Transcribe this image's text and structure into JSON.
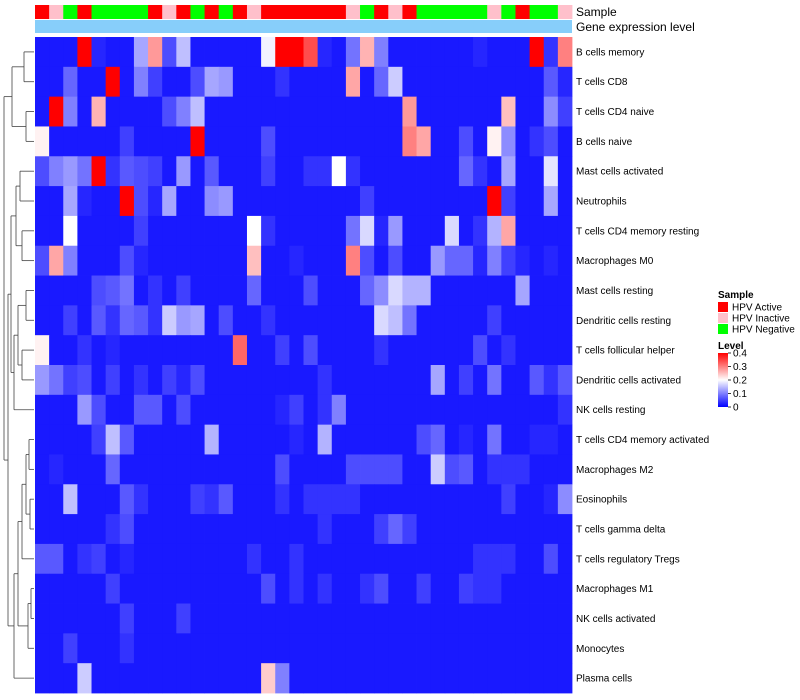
{
  "chart_data": {
    "type": "heatmap",
    "annotation_labels": [
      "Sample",
      "Gene expression level"
    ],
    "rows": [
      "B cells memory",
      "T cells CD8",
      "T cells CD4 naive",
      "B cells naive",
      "Mast cells activated",
      "Neutrophils",
      "T cells CD4 memory resting",
      "Macrophages M0",
      "Mast cells resting",
      "Dendritic cells resting",
      "T cells follicular helper",
      "Dendritic cells activated",
      "NK cells resting",
      "T cells CD4 memory activated",
      "Macrophages M2",
      "Eosinophils",
      "T cells gamma delta",
      "T cells regulatory  Tregs",
      "Macrophages M1",
      "NK cells activated",
      "Monocytes",
      "Plasma cells"
    ],
    "sample_groups": [
      "A",
      "I",
      "N",
      "A",
      "N",
      "N",
      "N",
      "N",
      "A",
      "I",
      "A",
      "N",
      "A",
      "N",
      "A",
      "I",
      "A",
      "A",
      "A",
      "A",
      "A",
      "A",
      "I",
      "N",
      "A",
      "I",
      "A",
      "N",
      "N",
      "N",
      "N",
      "N",
      "I",
      "N",
      "A",
      "N",
      "N",
      "I"
    ],
    "values": [
      [
        0.02,
        0.02,
        0.02,
        0.4,
        0.03,
        0.02,
        0.02,
        0.13,
        0.28,
        0.06,
        0.15,
        0.02,
        0.02,
        0.02,
        0.02,
        0.02,
        0.19,
        0.4,
        0.4,
        0.34,
        0.03,
        0.02,
        0.09,
        0.26,
        0.1,
        0.02,
        0.02,
        0.02,
        0.02,
        0.02,
        0.02,
        0.03,
        0.02,
        0.02,
        0.02,
        0.4,
        0.04,
        0.3
      ],
      [
        0.02,
        0.02,
        0.08,
        0.02,
        0.02,
        0.4,
        0.02,
        0.1,
        0.05,
        0.02,
        0.02,
        0.06,
        0.13,
        0.12,
        0.02,
        0.02,
        0.02,
        0.04,
        0.02,
        0.02,
        0.02,
        0.02,
        0.27,
        0.02,
        0.08,
        0.16,
        0.02,
        0.02,
        0.02,
        0.02,
        0.02,
        0.02,
        0.02,
        0.02,
        0.02,
        0.02,
        0.07,
        0.03
      ],
      [
        0.02,
        0.4,
        0.1,
        0.02,
        0.26,
        0.02,
        0.02,
        0.02,
        0.02,
        0.06,
        0.1,
        0.15,
        0.02,
        0.02,
        0.02,
        0.02,
        0.02,
        0.02,
        0.02,
        0.02,
        0.02,
        0.02,
        0.02,
        0.02,
        0.02,
        0.02,
        0.28,
        0.02,
        0.02,
        0.02,
        0.02,
        0.02,
        0.02,
        0.25,
        0.02,
        0.02,
        0.11,
        0.05
      ],
      [
        0.21,
        0.02,
        0.02,
        0.02,
        0.02,
        0.02,
        0.05,
        0.02,
        0.02,
        0.02,
        0.02,
        0.4,
        0.02,
        0.02,
        0.02,
        0.02,
        0.06,
        0.02,
        0.02,
        0.02,
        0.02,
        0.02,
        0.02,
        0.02,
        0.02,
        0.02,
        0.3,
        0.27,
        0.02,
        0.02,
        0.06,
        0.02,
        0.21,
        0.11,
        0.02,
        0.04,
        0.06,
        0.02
      ],
      [
        0.06,
        0.1,
        0.12,
        0.09,
        0.4,
        0.04,
        0.07,
        0.06,
        0.05,
        0.02,
        0.12,
        0.02,
        0.07,
        0.02,
        0.02,
        0.02,
        0.05,
        0.02,
        0.02,
        0.04,
        0.04,
        0.2,
        0.04,
        0.02,
        0.02,
        0.02,
        0.02,
        0.02,
        0.02,
        0.02,
        0.08,
        0.04,
        0.02,
        0.13,
        0.02,
        0.02,
        0.18,
        0.02
      ],
      [
        0.02,
        0.02,
        0.13,
        0.03,
        0.02,
        0.02,
        0.4,
        0.06,
        0.03,
        0.13,
        0.02,
        0.02,
        0.11,
        0.12,
        0.02,
        0.02,
        0.02,
        0.02,
        0.02,
        0.02,
        0.02,
        0.02,
        0.02,
        0.05,
        0.02,
        0.02,
        0.02,
        0.02,
        0.02,
        0.02,
        0.02,
        0.02,
        0.4,
        0.05,
        0.02,
        0.02,
        0.13,
        0.02
      ],
      [
        0.02,
        0.02,
        0.2,
        0.02,
        0.02,
        0.02,
        0.02,
        0.05,
        0.02,
        0.02,
        0.02,
        0.02,
        0.02,
        0.02,
        0.02,
        0.2,
        0.04,
        0.02,
        0.02,
        0.02,
        0.02,
        0.02,
        0.09,
        0.17,
        0.03,
        0.12,
        0.02,
        0.02,
        0.02,
        0.17,
        0.02,
        0.04,
        0.14,
        0.27,
        0.02,
        0.02,
        0.02,
        0.02
      ],
      [
        0.06,
        0.27,
        0.1,
        0.02,
        0.02,
        0.02,
        0.06,
        0.03,
        0.02,
        0.02,
        0.02,
        0.02,
        0.02,
        0.02,
        0.02,
        0.25,
        0.02,
        0.02,
        0.03,
        0.02,
        0.02,
        0.02,
        0.3,
        0.06,
        0.02,
        0.06,
        0.02,
        0.02,
        0.12,
        0.08,
        0.08,
        0.03,
        0.1,
        0.05,
        0.03,
        0.02,
        0.03,
        0.02
      ],
      [
        0.02,
        0.02,
        0.02,
        0.02,
        0.06,
        0.07,
        0.09,
        0.02,
        0.04,
        0.02,
        0.05,
        0.02,
        0.02,
        0.02,
        0.02,
        0.08,
        0.02,
        0.02,
        0.02,
        0.06,
        0.02,
        0.02,
        0.02,
        0.08,
        0.11,
        0.17,
        0.14,
        0.14,
        0.02,
        0.02,
        0.02,
        0.02,
        0.02,
        0.02,
        0.13,
        0.02,
        0.02,
        0.02
      ],
      [
        0.02,
        0.02,
        0.05,
        0.02,
        0.07,
        0.04,
        0.08,
        0.07,
        0.04,
        0.16,
        0.12,
        0.13,
        0.02,
        0.06,
        0.02,
        0.02,
        0.04,
        0.02,
        0.02,
        0.02,
        0.02,
        0.02,
        0.02,
        0.02,
        0.17,
        0.15,
        0.09,
        0.02,
        0.02,
        0.02,
        0.02,
        0.02,
        0.05,
        0.02,
        0.02,
        0.02,
        0.02,
        0.02
      ],
      [
        0.21,
        0.02,
        0.02,
        0.04,
        0.02,
        0.03,
        0.02,
        0.02,
        0.02,
        0.02,
        0.02,
        0.02,
        0.02,
        0.02,
        0.32,
        0.02,
        0.02,
        0.05,
        0.02,
        0.06,
        0.02,
        0.02,
        0.02,
        0.02,
        0.04,
        0.02,
        0.02,
        0.02,
        0.02,
        0.02,
        0.02,
        0.06,
        0.02,
        0.04,
        0.02,
        0.02,
        0.02,
        0.02
      ],
      [
        0.12,
        0.09,
        0.05,
        0.06,
        0.02,
        0.05,
        0.02,
        0.04,
        0.02,
        0.05,
        0.03,
        0.06,
        0.02,
        0.02,
        0.02,
        0.02,
        0.02,
        0.02,
        0.02,
        0.02,
        0.04,
        0.02,
        0.02,
        0.02,
        0.02,
        0.02,
        0.02,
        0.02,
        0.13,
        0.02,
        0.05,
        0.02,
        0.09,
        0.02,
        0.02,
        0.07,
        0.04,
        0.07
      ],
      [
        0.02,
        0.02,
        0.02,
        0.12,
        0.06,
        0.02,
        0.02,
        0.07,
        0.07,
        0.02,
        0.06,
        0.02,
        0.02,
        0.02,
        0.02,
        0.02,
        0.02,
        0.03,
        0.05,
        0.02,
        0.04,
        0.1,
        0.02,
        0.02,
        0.02,
        0.02,
        0.02,
        0.02,
        0.02,
        0.02,
        0.02,
        0.02,
        0.02,
        0.02,
        0.02,
        0.02,
        0.02,
        0.04
      ],
      [
        0.02,
        0.02,
        0.02,
        0.02,
        0.05,
        0.15,
        0.07,
        0.02,
        0.02,
        0.02,
        0.02,
        0.02,
        0.14,
        0.02,
        0.02,
        0.02,
        0.02,
        0.02,
        0.03,
        0.02,
        0.14,
        0.02,
        0.02,
        0.02,
        0.02,
        0.02,
        0.02,
        0.06,
        0.08,
        0.02,
        0.03,
        0.02,
        0.09,
        0.02,
        0.02,
        0.03,
        0.03,
        0.02
      ],
      [
        0.02,
        0.03,
        0.02,
        0.02,
        0.02,
        0.08,
        0.02,
        0.02,
        0.02,
        0.02,
        0.02,
        0.02,
        0.02,
        0.02,
        0.02,
        0.02,
        0.02,
        0.06,
        0.02,
        0.02,
        0.02,
        0.02,
        0.06,
        0.06,
        0.06,
        0.06,
        0.02,
        0.02,
        0.16,
        0.06,
        0.07,
        0.02,
        0.04,
        0.04,
        0.04,
        0.02,
        0.02,
        0.02
      ],
      [
        0.02,
        0.02,
        0.15,
        0.02,
        0.02,
        0.02,
        0.07,
        0.04,
        0.02,
        0.02,
        0.02,
        0.05,
        0.04,
        0.07,
        0.02,
        0.02,
        0.02,
        0.04,
        0.02,
        0.04,
        0.04,
        0.04,
        0.04,
        0.02,
        0.02,
        0.02,
        0.02,
        0.02,
        0.02,
        0.02,
        0.02,
        0.02,
        0.02,
        0.05,
        0.02,
        0.02,
        0.03,
        0.11
      ],
      [
        0.02,
        0.02,
        0.02,
        0.02,
        0.02,
        0.04,
        0.06,
        0.02,
        0.02,
        0.02,
        0.02,
        0.02,
        0.02,
        0.02,
        0.02,
        0.02,
        0.02,
        0.02,
        0.02,
        0.02,
        0.04,
        0.02,
        0.02,
        0.02,
        0.05,
        0.08,
        0.05,
        0.02,
        0.02,
        0.02,
        0.02,
        0.02,
        0.02,
        0.02,
        0.02,
        0.02,
        0.02,
        0.02
      ],
      [
        0.07,
        0.07,
        0.02,
        0.04,
        0.05,
        0.02,
        0.03,
        0.02,
        0.02,
        0.02,
        0.02,
        0.02,
        0.02,
        0.02,
        0.02,
        0.04,
        0.02,
        0.02,
        0.04,
        0.02,
        0.02,
        0.02,
        0.02,
        0.02,
        0.02,
        0.02,
        0.02,
        0.02,
        0.02,
        0.02,
        0.02,
        0.04,
        0.04,
        0.04,
        0.02,
        0.02,
        0.06,
        0.02
      ],
      [
        0.02,
        0.02,
        0.02,
        0.02,
        0.02,
        0.05,
        0.02,
        0.02,
        0.02,
        0.02,
        0.02,
        0.02,
        0.02,
        0.02,
        0.02,
        0.02,
        0.06,
        0.02,
        0.04,
        0.02,
        0.04,
        0.02,
        0.02,
        0.04,
        0.06,
        0.02,
        0.02,
        0.05,
        0.02,
        0.02,
        0.05,
        0.04,
        0.04,
        0.02,
        0.02,
        0.02,
        0.02,
        0.02
      ],
      [
        0.02,
        0.02,
        0.02,
        0.02,
        0.02,
        0.02,
        0.05,
        0.02,
        0.02,
        0.02,
        0.05,
        0.02,
        0.02,
        0.02,
        0.02,
        0.02,
        0.02,
        0.02,
        0.02,
        0.02,
        0.02,
        0.02,
        0.02,
        0.02,
        0.02,
        0.02,
        0.02,
        0.02,
        0.02,
        0.02,
        0.02,
        0.02,
        0.02,
        0.02,
        0.02,
        0.02,
        0.02,
        0.02
      ],
      [
        0.02,
        0.02,
        0.05,
        0.02,
        0.02,
        0.02,
        0.04,
        0.02,
        0.02,
        0.02,
        0.02,
        0.02,
        0.02,
        0.02,
        0.02,
        0.02,
        0.02,
        0.02,
        0.02,
        0.02,
        0.02,
        0.02,
        0.02,
        0.02,
        0.02,
        0.02,
        0.02,
        0.02,
        0.02,
        0.02,
        0.02,
        0.02,
        0.02,
        0.02,
        0.02,
        0.02,
        0.02,
        0.02
      ],
      [
        0.02,
        0.02,
        0.02,
        0.16,
        0.02,
        0.02,
        0.02,
        0.02,
        0.02,
        0.02,
        0.02,
        0.02,
        0.02,
        0.02,
        0.02,
        0.02,
        0.24,
        0.1,
        0.02,
        0.02,
        0.02,
        0.02,
        0.02,
        0.02,
        0.02,
        0.02,
        0.02,
        0.02,
        0.02,
        0.02,
        0.02,
        0.02,
        0.02,
        0.02,
        0.02,
        0.02,
        0.02,
        0.02
      ]
    ],
    "legend": {
      "sample_title": "Sample",
      "sample_items": [
        {
          "key": "A",
          "label": "HPV Active",
          "color": "#ff0000"
        },
        {
          "key": "I",
          "label": "HPV Inactive",
          "color": "#ffc0cb"
        },
        {
          "key": "N",
          "label": "HPV Negative",
          "color": "#00ff00"
        }
      ],
      "level_title": "Level",
      "level_ticks": [
        0.4,
        0.3,
        0.2,
        0.1,
        0
      ],
      "level_range": [
        0,
        0.4
      ]
    },
    "colors": {
      "low": "#0000ff",
      "mid": "#ffffff",
      "high": "#ff0000",
      "expression_bar": "#87cefa"
    }
  }
}
